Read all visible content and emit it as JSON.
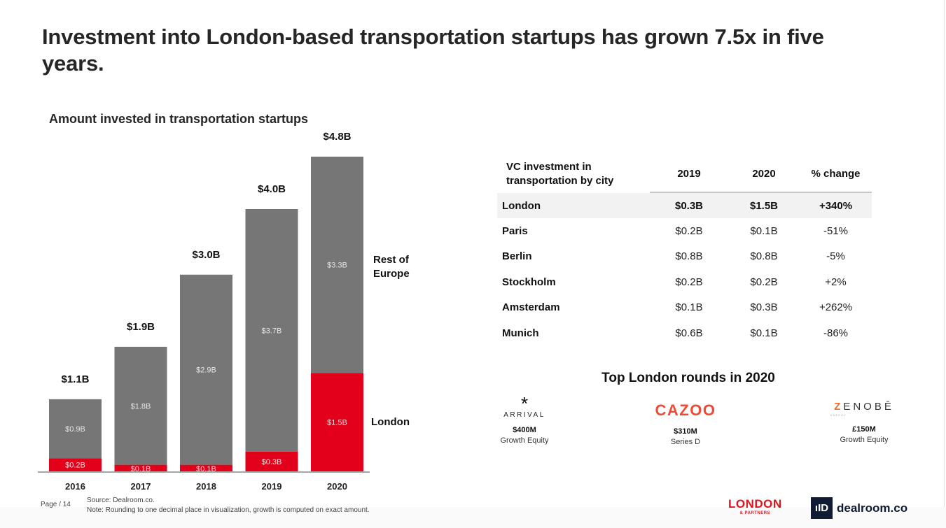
{
  "title": "Investment into London-based transportation startups has grown 7.5x in five years.",
  "page_label": "Page / 14",
  "footnotes": {
    "source": "Source: Dealroom.co.",
    "note": "Note: Rounding to one decimal place in visualization, growth is computed on exact amount."
  },
  "colors": {
    "london": "#e2001a",
    "rest_of_europe": "#767676",
    "axis": "#a6a6a6"
  },
  "chart_data": {
    "type": "bar",
    "stacked": true,
    "title": "Amount invested in transportation startups",
    "xlabel": "",
    "ylabel": "",
    "unit": "$B",
    "categories": [
      "2016",
      "2017",
      "2018",
      "2019",
      "2020"
    ],
    "series": [
      {
        "name": "London",
        "values": [
          0.2,
          0.1,
          0.1,
          0.3,
          1.5
        ],
        "labels": [
          "$0.2B",
          "$0.1B",
          "$0.1B",
          "$0.3B",
          "$1.5B"
        ]
      },
      {
        "name": "Rest of Europe",
        "values": [
          0.9,
          1.8,
          2.9,
          3.7,
          3.3
        ],
        "labels": [
          "$0.9B",
          "$1.8B",
          "$2.9B",
          "$3.7B",
          "$3.3B"
        ]
      }
    ],
    "totals": [
      1.1,
      1.9,
      3.0,
      4.0,
      4.8
    ],
    "total_labels": [
      "$1.1B",
      "$1.9B",
      "$3.0B",
      "$4.0B",
      "$4.8B"
    ],
    "legend": [
      "Rest of Europe",
      "London"
    ],
    "legend_placement": "right",
    "ylim": [
      0,
      4.8
    ],
    "grid": false
  },
  "legend_labels": {
    "rest_of_europe": "Rest of Europe",
    "london": "London"
  },
  "table": {
    "headers": [
      "VC investment in transportation by city",
      "2019",
      "2020",
      "% change"
    ],
    "rows": [
      {
        "city": "London",
        "y2019": "$0.3B",
        "y2020": "$1.5B",
        "change": "+340%",
        "highlight": true
      },
      {
        "city": "Paris",
        "y2019": "$0.2B",
        "y2020": "$0.1B",
        "change": "-51%"
      },
      {
        "city": "Berlin",
        "y2019": "$0.8B",
        "y2020": "$0.8B",
        "change": "-5%"
      },
      {
        "city": "Stockholm",
        "y2019": "$0.2B",
        "y2020": "$0.2B",
        "change": "+2%"
      },
      {
        "city": "Amsterdam",
        "y2019": "$0.1B",
        "y2020": "$0.3B",
        "change": "+262%"
      },
      {
        "city": "Munich",
        "y2019": "$0.6B",
        "y2020": "$0.1B",
        "change": "-86%"
      }
    ]
  },
  "rounds": {
    "title": "Top London rounds in 2020",
    "items": [
      {
        "company": "ARRIVAL",
        "logo_glyph": "*",
        "amount": "$400M",
        "stage": "Growth Equity"
      },
      {
        "company": "CAZOO",
        "amount": "$310M",
        "stage": "Series D"
      },
      {
        "company": "ZENOBĒ",
        "company_sub": "ENERGY",
        "amount": "£150M",
        "stage": "Growth Equity"
      }
    ]
  },
  "logos": {
    "london_partners": {
      "main": "LONDON",
      "sub": "& PARTNERS"
    },
    "dealroom": {
      "mark": "ıID",
      "text": "dealroom.co"
    }
  }
}
